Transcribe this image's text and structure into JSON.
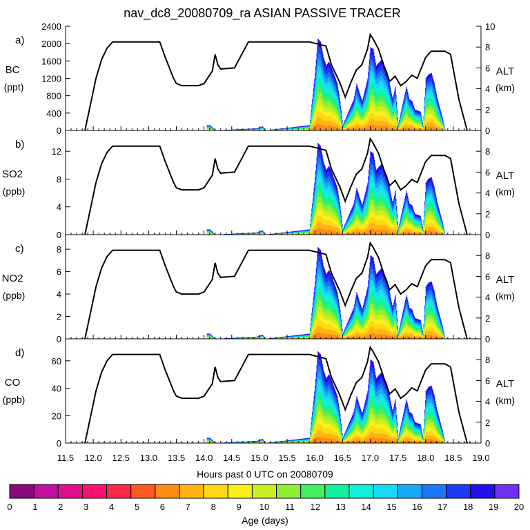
{
  "title": "nav_dc8_20080709_ra ASIAN PASSIVE TRACER",
  "xlabel": "Hours past 0 UTC on 20080709",
  "x_ticks": [
    "11.5",
    "12.0",
    "12.5",
    "13.0",
    "13.5",
    "14.0",
    "14.5",
    "15.0",
    "15.5",
    "16.0",
    "16.5",
    "17.0",
    "17.5",
    "18.0",
    "18.5",
    "19.0"
  ],
  "colorbar": {
    "label": "Age (days)",
    "ticks": [
      "0",
      "1",
      "2",
      "3",
      "4",
      "5",
      "6",
      "7",
      "8",
      "9",
      "10",
      "11",
      "12",
      "13",
      "14",
      "15",
      "16",
      "17",
      "18",
      "19",
      "20"
    ],
    "colors": [
      "#8b0a7a",
      "#c010a0",
      "#e0108a",
      "#ff1070",
      "#ff2848",
      "#ff5a1e",
      "#ff8a14",
      "#ffb414",
      "#ffd814",
      "#f8f018",
      "#c8f020",
      "#8ef030",
      "#40f060",
      "#10f0a0",
      "#10f0d8",
      "#18d8f8",
      "#18a8f8",
      "#1878f8",
      "#1a3cf8",
      "#2010f0",
      "#7030f8"
    ]
  },
  "chart_data": [
    {
      "type": "area",
      "panel": "a)",
      "ylabel": "BC",
      "yunit": "(ppt)",
      "ylim": [
        0,
        2400
      ],
      "yticks": [
        "0",
        "400",
        "800",
        "1200",
        "1600",
        "2000",
        "2400"
      ],
      "y2label": "ALT",
      "y2unit": "(km)",
      "y2lim": [
        0,
        10
      ],
      "y2ticks": [
        "0",
        "2",
        "4",
        "6",
        "8",
        "10"
      ],
      "xlim": [
        11.5,
        19.0
      ]
    },
    {
      "type": "area",
      "panel": "b)",
      "ylabel": "SO2",
      "yunit": "(ppb)",
      "ylim": [
        0,
        15
      ],
      "yticks": [
        "0",
        "4",
        "8",
        "12"
      ],
      "y2label": "ALT",
      "y2unit": "(km)",
      "y2lim": [
        0,
        10
      ],
      "y2ticks": [
        "0",
        "2",
        "4",
        "6",
        "8"
      ],
      "xlim": [
        11.5,
        19.0
      ]
    },
    {
      "type": "area",
      "panel": "c)",
      "ylabel": "NO2",
      "yunit": "(ppb)",
      "ylim": [
        0,
        9.3
      ],
      "yticks": [
        "0",
        "2",
        "4",
        "6",
        "8"
      ],
      "y2label": "ALT",
      "y2unit": "(km)",
      "y2lim": [
        0,
        10
      ],
      "y2ticks": [
        "0",
        "2",
        "4",
        "6",
        "8"
      ],
      "xlim": [
        11.5,
        19.0
      ]
    },
    {
      "type": "area",
      "panel": "d)",
      "ylabel": "CO",
      "yunit": "(ppb)",
      "ylim": [
        0,
        76
      ],
      "yticks": [
        "0",
        "20",
        "40",
        "60"
      ],
      "y2label": "ALT",
      "y2unit": "(km)",
      "y2lim": [
        0,
        10
      ],
      "y2ticks": [
        "0",
        "2",
        "4",
        "6",
        "8"
      ],
      "xlim": [
        11.5,
        19.0
      ]
    }
  ],
  "altitude_km": {
    "x": [
      11.85,
      11.95,
      12.05,
      12.15,
      12.25,
      12.35,
      13.2,
      13.3,
      13.45,
      13.5,
      13.6,
      13.9,
      14.0,
      14.15,
      14.2,
      14.25,
      14.3,
      14.55,
      14.7,
      14.8,
      15.9,
      16.2,
      16.3,
      16.45,
      16.55,
      16.65,
      16.75,
      16.85,
      16.95,
      17.0,
      17.05,
      17.15,
      17.25,
      17.35,
      17.45,
      17.55,
      17.65,
      17.75,
      17.85,
      18.0,
      18.1,
      18.35,
      18.45,
      18.6,
      18.75
    ],
    "y": [
      0,
      2.5,
      5,
      6.8,
      7.9,
      8.5,
      8.5,
      7,
      5,
      4.5,
      4.3,
      4.3,
      4.5,
      5.7,
      7.3,
      6.3,
      5.9,
      6.0,
      7.5,
      8.5,
      8.5,
      8.1,
      6.3,
      4.6,
      3.2,
      4.6,
      5.8,
      6.3,
      7.8,
      9.2,
      8.8,
      7.8,
      6.2,
      4.7,
      5.2,
      4.3,
      4.7,
      5.3,
      5.0,
      7.0,
      7.6,
      7.6,
      7.3,
      3.0,
      0
    ]
  },
  "tracer_shape": {
    "x": [
      14.1,
      14.2,
      14.95,
      15.05,
      15.1,
      15.9,
      16.0,
      16.05,
      16.1,
      16.15,
      16.2,
      16.25,
      16.3,
      16.4,
      16.45,
      16.5,
      16.7,
      16.75,
      16.8,
      16.85,
      16.95,
      17.0,
      17.05,
      17.1,
      17.2,
      17.3,
      17.4,
      17.45,
      17.5,
      17.6,
      17.65,
      17.7,
      17.75,
      17.8,
      17.9,
      17.95,
      18.0,
      18.05,
      18.1,
      18.15,
      18.2,
      18.3,
      18.35
    ],
    "y": [
      0.05,
      0,
      0.02,
      0.04,
      0,
      0.05,
      0.55,
      0.88,
      0.85,
      0.7,
      0.62,
      0.66,
      0.6,
      0.45,
      0.28,
      0.05,
      0.3,
      0.45,
      0.36,
      0.28,
      0.5,
      0.8,
      0.78,
      0.62,
      0.68,
      0.56,
      0.3,
      0.42,
      0.05,
      0.3,
      0.42,
      0.3,
      0.28,
      0.2,
      0.18,
      0.05,
      0.5,
      0.54,
      0.55,
      0.46,
      0.32,
      0.12,
      0
    ]
  }
}
